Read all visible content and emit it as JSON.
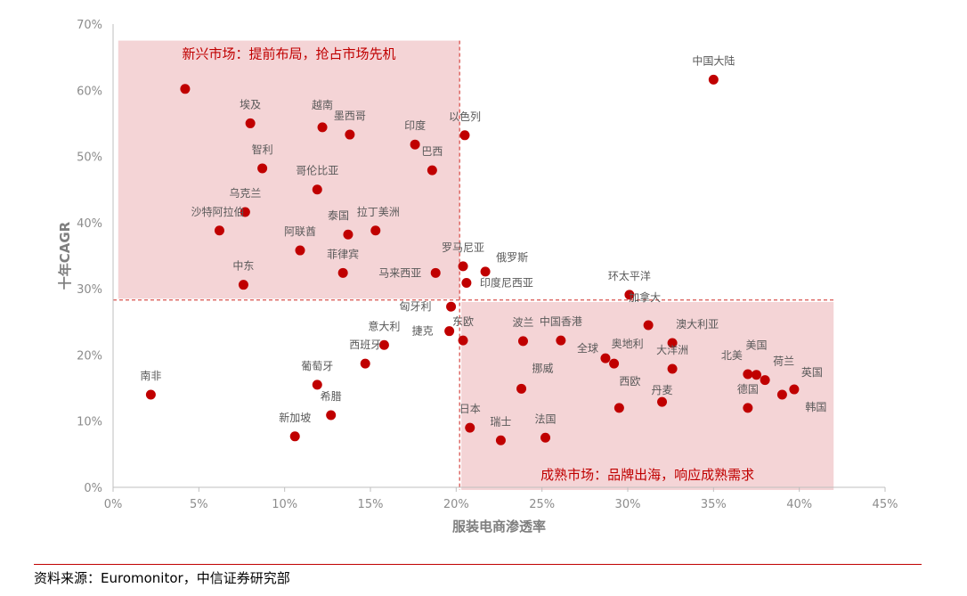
{
  "chart_data": {
    "type": "scatter",
    "xlabel": "服装电商渗透率",
    "ylabel": "十年CAGR",
    "xlim": [
      0,
      45
    ],
    "ylim": [
      0,
      70
    ],
    "xticks": [
      "0%",
      "5%",
      "10%",
      "15%",
      "20%",
      "25%",
      "30%",
      "35%",
      "40%",
      "45%"
    ],
    "yticks": [
      "0%",
      "10%",
      "20%",
      "30%",
      "40%",
      "50%",
      "60%",
      "70%"
    ],
    "grid": false,
    "color": "#c00000",
    "region_color": "#f4d4d6",
    "regions": [
      {
        "label": "新兴市场：提前布局，抢占市场先机",
        "x": [
          0.3,
          20.2
        ],
        "y": [
          28.5,
          67.5
        ]
      },
      {
        "label": "成熟市场：品牌出海，响应成熟需求",
        "x": [
          20.3,
          42
        ],
        "y": [
          0,
          28
        ]
      }
    ],
    "threshold_lines": {
      "x": 20.2,
      "y": 28.3
    },
    "points": [
      {
        "name": "南非",
        "x": 2.2,
        "y": 14.0
      },
      {
        "name": "",
        "x": 4.2,
        "y": 60.2
      },
      {
        "name": "埃及",
        "x": 8.0,
        "y": 55.0
      },
      {
        "name": "越南",
        "x": 12.2,
        "y": 54.4
      },
      {
        "name": "墨西哥",
        "x": 13.8,
        "y": 53.3
      },
      {
        "name": "印度",
        "x": 17.6,
        "y": 51.8
      },
      {
        "name": "以色列",
        "x": 20.5,
        "y": 53.2
      },
      {
        "name": "巴西",
        "x": 18.6,
        "y": 47.9
      },
      {
        "name": "智利",
        "x": 8.7,
        "y": 48.2
      },
      {
        "name": "哥伦比亚",
        "x": 11.9,
        "y": 45.0
      },
      {
        "name": "乌克兰",
        "x": 7.7,
        "y": 41.6
      },
      {
        "name": "沙特阿拉伯",
        "x": 6.2,
        "y": 38.8
      },
      {
        "name": "阿联酋",
        "x": 10.9,
        "y": 35.8
      },
      {
        "name": "泰国",
        "x": 13.7,
        "y": 38.2
      },
      {
        "name": "拉丁美洲",
        "x": 15.3,
        "y": 38.8
      },
      {
        "name": "菲律宾",
        "x": 13.4,
        "y": 32.4
      },
      {
        "name": "中东",
        "x": 7.6,
        "y": 30.6
      },
      {
        "name": "马来西亚",
        "x": 18.8,
        "y": 32.4
      },
      {
        "name": "罗马尼亚",
        "x": 20.4,
        "y": 33.4
      },
      {
        "name": "俄罗斯",
        "x": 21.7,
        "y": 32.6
      },
      {
        "name": "印度尼西亚",
        "x": 20.6,
        "y": 30.9
      },
      {
        "name": "匈牙利",
        "x": 19.7,
        "y": 27.3
      },
      {
        "name": "捷克",
        "x": 19.6,
        "y": 23.6
      },
      {
        "name": "东欧",
        "x": 20.4,
        "y": 22.2
      },
      {
        "name": "意大利",
        "x": 15.8,
        "y": 21.5
      },
      {
        "name": "西班牙",
        "x": 14.7,
        "y": 18.7
      },
      {
        "name": "葡萄牙",
        "x": 11.9,
        "y": 15.5
      },
      {
        "name": "希腊",
        "x": 12.7,
        "y": 10.9
      },
      {
        "name": "新加坡",
        "x": 10.6,
        "y": 7.7
      },
      {
        "name": "日本",
        "x": 20.8,
        "y": 9.0
      },
      {
        "name": "瑞士",
        "x": 22.6,
        "y": 7.1
      },
      {
        "name": "法国",
        "x": 25.2,
        "y": 7.5
      },
      {
        "name": "挪威",
        "x": 23.8,
        "y": 14.9
      },
      {
        "name": "波兰",
        "x": 23.9,
        "y": 22.1
      },
      {
        "name": "中国香港",
        "x": 26.1,
        "y": 22.2
      },
      {
        "name": "全球",
        "x": 28.7,
        "y": 19.5
      },
      {
        "name": "奥地利",
        "x": 29.2,
        "y": 18.7
      },
      {
        "name": "西欧",
        "x": 29.5,
        "y": 12.0
      },
      {
        "name": "丹麦",
        "x": 32.0,
        "y": 12.9
      },
      {
        "name": "环太平洋",
        "x": 30.1,
        "y": 29.1
      },
      {
        "name": "加拿大",
        "x": 31.2,
        "y": 24.5
      },
      {
        "name": "澳大利亚",
        "x": 32.6,
        "y": 21.8
      },
      {
        "name": "大洋洲",
        "x": 32.6,
        "y": 17.9
      },
      {
        "name": "中国大陆",
        "x": 35.0,
        "y": 61.6
      },
      {
        "name": "北美",
        "x": 37.0,
        "y": 17.1
      },
      {
        "name": "美国",
        "x": 37.5,
        "y": 17.0
      },
      {
        "name": "荷兰",
        "x": 38.0,
        "y": 16.2
      },
      {
        "name": "德国",
        "x": 37.0,
        "y": 12.0
      },
      {
        "name": "韩国",
        "x": 39.0,
        "y": 14.0
      },
      {
        "name": "英国",
        "x": 39.7,
        "y": 14.8
      }
    ]
  },
  "footer": {
    "source": "资料来源：Euromonitor，中信证券研究部"
  }
}
